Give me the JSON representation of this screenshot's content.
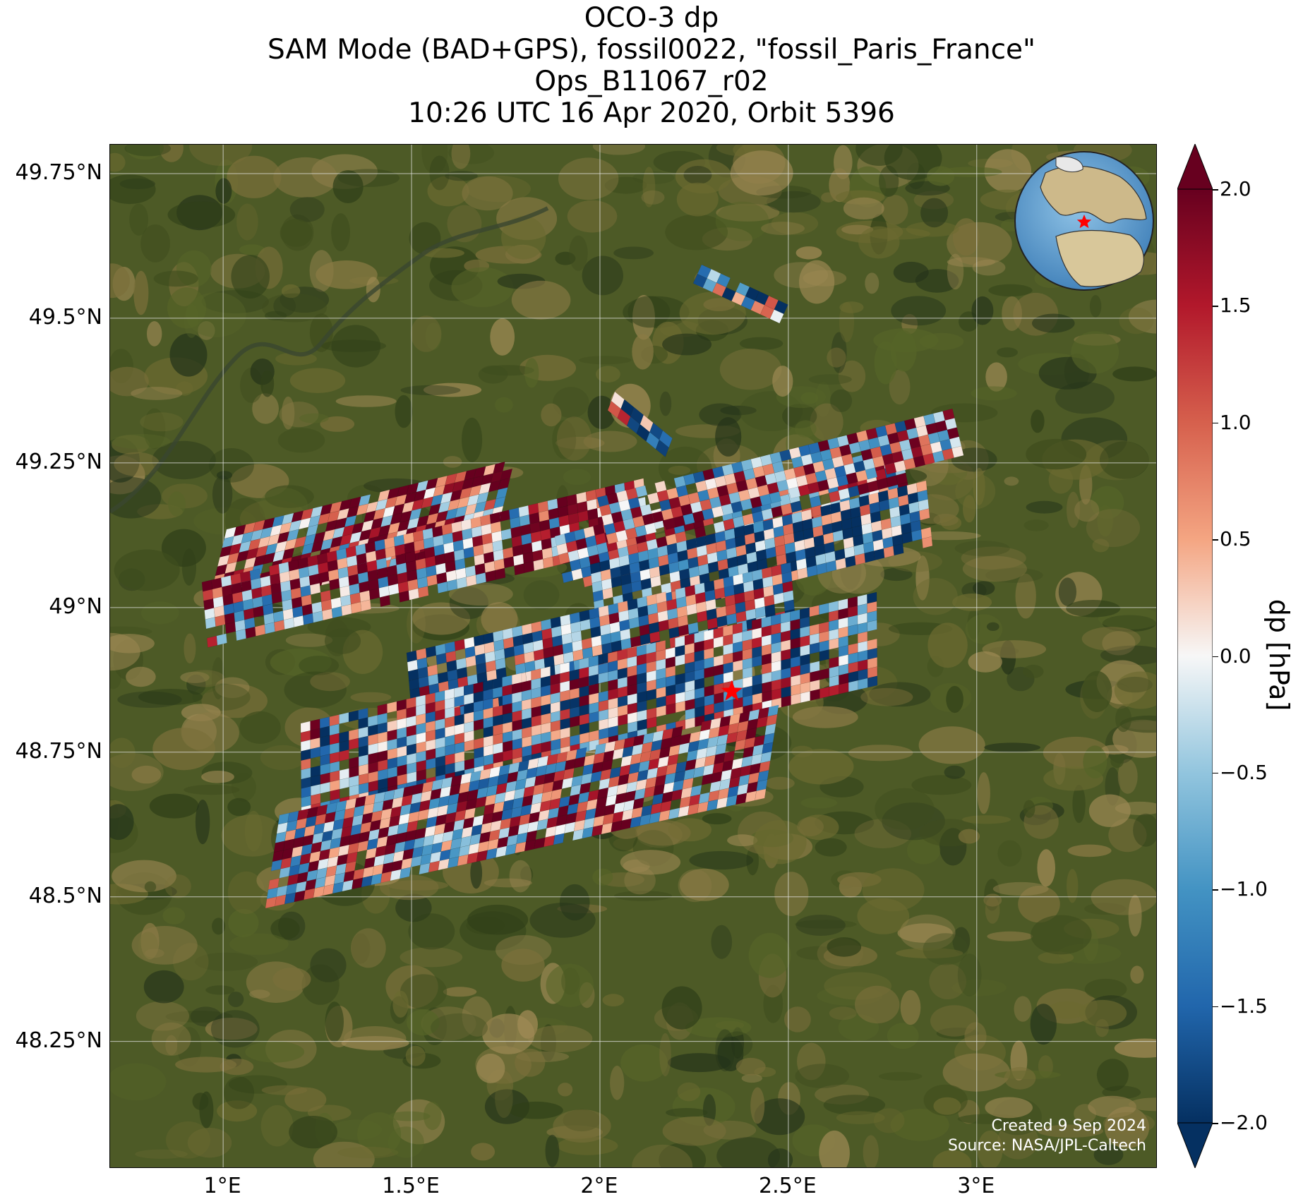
{
  "title": {
    "line1": "OCO-3 dp",
    "line2": "SAM Mode (BAD+GPS), fossil0022, \"fossil_Paris_France\"",
    "line3": "Ops_B11067_r02",
    "line4": "10:26 UTC 16 Apr 2020, Orbit 5396"
  },
  "map": {
    "lon_range": [
      0.7,
      3.48
    ],
    "lat_range": [
      48.03,
      49.8
    ],
    "lat_ticks": [
      {
        "value": 49.75,
        "label": "49.75°N"
      },
      {
        "value": 49.5,
        "label": "49.5°N"
      },
      {
        "value": 49.25,
        "label": "49.25°N"
      },
      {
        "value": 49.0,
        "label": "49°N"
      },
      {
        "value": 48.75,
        "label": "48.75°N"
      },
      {
        "value": 48.5,
        "label": "48.5°N"
      },
      {
        "value": 48.25,
        "label": "48.25°N"
      }
    ],
    "lon_ticks": [
      {
        "value": 1.0,
        "label": "1°E"
      },
      {
        "value": 1.5,
        "label": "1.5°E"
      },
      {
        "value": 2.0,
        "label": "2°E"
      },
      {
        "value": 2.5,
        "label": "2.5°E"
      },
      {
        "value": 3.0,
        "label": "3°E"
      }
    ],
    "target_marker": {
      "lon": 2.35,
      "lat": 48.855,
      "color": "#ff0000",
      "icon": "star-icon"
    },
    "inset": {
      "content": "globe-locator",
      "marker_icon": "star-icon",
      "marker_color": "#ff0000"
    }
  },
  "colorbar": {
    "label": "dp [hPa]",
    "range": [
      -2.0,
      2.0
    ],
    "colormap": "RdBu_r",
    "extend": "both",
    "ticks": [
      {
        "value": 2.0,
        "label": "2.0"
      },
      {
        "value": 1.5,
        "label": "1.5"
      },
      {
        "value": 1.0,
        "label": "1.0"
      },
      {
        "value": 0.5,
        "label": "0.5"
      },
      {
        "value": 0.0,
        "label": "0.0"
      },
      {
        "value": -0.5,
        "label": "−0.5"
      },
      {
        "value": -1.0,
        "label": "−1.0"
      },
      {
        "value": -1.5,
        "label": "−1.5"
      },
      {
        "value": -2.0,
        "label": "−2.0"
      }
    ]
  },
  "credits": {
    "created": "Created 9 Sep 2024",
    "source": "Source: NASA/JPL-Caltech"
  }
}
